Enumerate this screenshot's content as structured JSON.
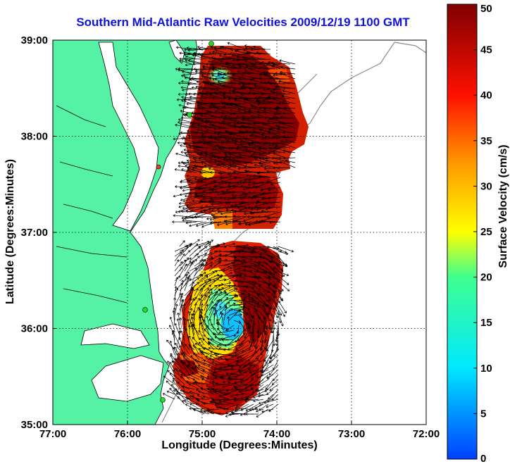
{
  "title": "Southern Mid-Atlantic Raw Velocities 2009/12/19 1100 GMT",
  "axes": {
    "xlabel": "Longitude (Degrees:Minutes)",
    "ylabel": "Latitude (Degrees:Minutes)",
    "x_ticks": [
      "77:00",
      "76:00",
      "75:00",
      "74:00",
      "73:00",
      "72:00"
    ],
    "y_ticks": [
      "39:00",
      "38:00",
      "37:00",
      "36:00",
      "35:00"
    ],
    "xlim": [
      -77,
      -72
    ],
    "ylim": [
      35,
      39
    ],
    "grid": true
  },
  "colorbar": {
    "label": "Surface Velocity (cm/s)",
    "ticks": [
      "50",
      "45",
      "40",
      "35",
      "30",
      "25",
      "20",
      "15",
      "10",
      "5",
      "0"
    ],
    "range": [
      0,
      50
    ]
  },
  "colors": {
    "land": "#55f2a6",
    "water": "#ffffff",
    "coastline": "#000000",
    "bathymetry": "#8c8c8c",
    "arrows": "#000000",
    "stations": "#22dd22",
    "title": "#1010e0"
  }
}
